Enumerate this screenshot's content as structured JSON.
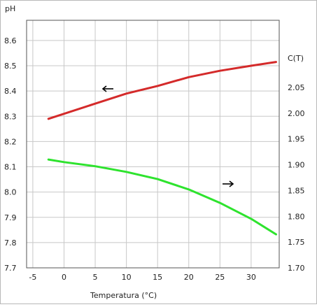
{
  "chart_data": {
    "type": "line",
    "title": "",
    "xlabel": "Temperatura (°C)",
    "ylabel_left": "pH",
    "ylabel_right": "C(T)",
    "xlim": [
      -6,
      34.5
    ],
    "ylim_left": [
      7.7,
      8.68
    ],
    "ylim_right": [
      1.7,
      2.18
    ],
    "x_ticks": [
      -5,
      0,
      5,
      10,
      15,
      20,
      25,
      30
    ],
    "y_ticks_left": [
      7.7,
      7.8,
      7.9,
      8.0,
      8.1,
      8.2,
      8.3,
      8.4,
      8.5,
      8.6
    ],
    "y_ticks_right": [
      1.7,
      1.75,
      1.8,
      1.85,
      1.9,
      1.95,
      2.0,
      2.05
    ],
    "y_ticks_right_labels": [
      "1.70",
      "1.75",
      "1.80",
      "1.85",
      "1.90",
      "1.95",
      "2.00",
      "2.05"
    ],
    "grid": true,
    "series": [
      {
        "axis": "left",
        "color": "#d42a2a",
        "arrow": "left",
        "x": [
          -2.5,
          0,
          5,
          10,
          15,
          20,
          25,
          30,
          34
        ],
        "y": [
          8.29,
          8.31,
          8.35,
          8.39,
          8.42,
          8.455,
          8.48,
          8.5,
          8.515
        ]
      },
      {
        "axis": "right",
        "color": "#2ee32e",
        "arrow": "right",
        "x": [
          -2.5,
          0,
          5,
          10,
          15,
          20,
          25,
          30,
          34
        ],
        "y": [
          1.91,
          1.905,
          1.897,
          1.886,
          1.872,
          1.852,
          1.826,
          1.795,
          1.765
        ]
      }
    ]
  }
}
